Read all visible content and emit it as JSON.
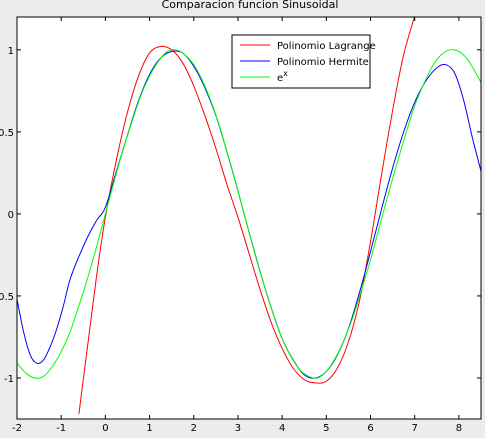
{
  "chart_data": {
    "type": "line",
    "title": "Comparacion funcion Sinusoidal",
    "xlabel": "",
    "ylabel": "",
    "xlim": [
      -2,
      8.5
    ],
    "ylim": [
      -1.25,
      1.2
    ],
    "grid": false,
    "legend_position": "top-right",
    "x_ticks": [
      -2,
      -1,
      0,
      1,
      2,
      3,
      4,
      5,
      6,
      7,
      8
    ],
    "x_tick_labels": [
      "-2",
      "-1",
      "0",
      "1",
      "2",
      "3",
      "4",
      "5",
      "6",
      "7",
      "8"
    ],
    "y_ticks": [
      -1,
      -0.5,
      0,
      0.5,
      1
    ],
    "y_tick_labels": [
      "-1",
      "-0.5",
      "0",
      "0.5",
      "1"
    ],
    "series": [
      {
        "name": "Polinomio Lagrange",
        "color": "#ff0000",
        "x": [
          -0.6,
          -0.4,
          -0.2,
          0,
          0.25,
          0.5,
          0.75,
          1,
          1.25,
          1.5,
          1.75,
          2,
          2.25,
          2.5,
          2.75,
          3,
          3.25,
          3.5,
          3.75,
          4,
          4.25,
          4.5,
          4.75,
          5,
          5.25,
          5.5,
          5.75,
          6,
          6.25,
          6.5,
          6.75,
          7.05
        ],
        "y": [
          -1.22,
          -0.8,
          -0.38,
          -0.02,
          0.33,
          0.62,
          0.84,
          0.98,
          1.02,
          1.0,
          0.92,
          0.78,
          0.6,
          0.4,
          0.18,
          -0.02,
          -0.24,
          -0.46,
          -0.66,
          -0.82,
          -0.94,
          -1.01,
          -1.03,
          -1.02,
          -0.94,
          -0.78,
          -0.53,
          -0.17,
          0.24,
          0.63,
          0.97,
          1.25
        ]
      },
      {
        "name": "Polinomio Hermite",
        "color": "#0000ff",
        "x": [
          -2,
          -1.85,
          -1.7,
          -1.55,
          -1.4,
          -1.25,
          -1.1,
          -0.95,
          -0.8,
          -0.6,
          -0.4,
          -0.2,
          0,
          0.25,
          0.5,
          0.75,
          1,
          1.25,
          1.5,
          1.75,
          2,
          2.25,
          2.5,
          2.75,
          3,
          3.25,
          3.5,
          3.75,
          4,
          4.25,
          4.5,
          4.75,
          5,
          5.25,
          5.5,
          5.75,
          6,
          6.25,
          6.5,
          6.75,
          7,
          7.25,
          7.5,
          7.7,
          7.9,
          8.1,
          8.3,
          8.5
        ],
        "y": [
          -0.52,
          -0.72,
          -0.86,
          -0.91,
          -0.89,
          -0.81,
          -0.7,
          -0.56,
          -0.4,
          -0.26,
          -0.14,
          -0.04,
          0.04,
          0.26,
          0.48,
          0.69,
          0.85,
          0.95,
          0.99,
          0.98,
          0.9,
          0.77,
          0.6,
          0.38,
          0.14,
          -0.11,
          -0.35,
          -0.57,
          -0.76,
          -0.89,
          -0.98,
          -1.0,
          -0.96,
          -0.86,
          -0.7,
          -0.48,
          -0.23,
          0.03,
          0.28,
          0.5,
          0.68,
          0.81,
          0.89,
          0.91,
          0.86,
          0.7,
          0.47,
          0.26
        ]
      },
      {
        "name": "e^x",
        "color": "#00ff00",
        "x": [
          -2,
          -1.8,
          -1.6,
          -1.4,
          -1.2,
          -1,
          -0.8,
          -0.6,
          -0.4,
          -0.2,
          0,
          0.2,
          0.4,
          0.6,
          0.8,
          1,
          1.2,
          1.4,
          1.6,
          1.8,
          2,
          2.2,
          2.4,
          2.6,
          2.8,
          3,
          3.2,
          3.4,
          3.6,
          3.8,
          4,
          4.2,
          4.4,
          4.6,
          4.8,
          5,
          5.2,
          5.4,
          5.6,
          5.8,
          6,
          6.2,
          6.4,
          6.6,
          6.8,
          7,
          7.2,
          7.4,
          7.6,
          7.8,
          8,
          8.2,
          8.4,
          8.5
        ],
        "y": [
          -0.91,
          -0.97,
          -1.0,
          -0.99,
          -0.93,
          -0.84,
          -0.72,
          -0.56,
          -0.39,
          -0.2,
          0,
          0.2,
          0.39,
          0.56,
          0.72,
          0.84,
          0.93,
          0.99,
          1.0,
          0.97,
          0.91,
          0.81,
          0.68,
          0.52,
          0.33,
          0.14,
          -0.06,
          -0.26,
          -0.44,
          -0.61,
          -0.76,
          -0.87,
          -0.95,
          -0.99,
          -1.0,
          -0.96,
          -0.88,
          -0.77,
          -0.63,
          -0.46,
          -0.28,
          -0.08,
          0.12,
          0.31,
          0.49,
          0.66,
          0.79,
          0.9,
          0.97,
          1.0,
          0.99,
          0.94,
          0.85,
          0.8
        ]
      }
    ]
  }
}
